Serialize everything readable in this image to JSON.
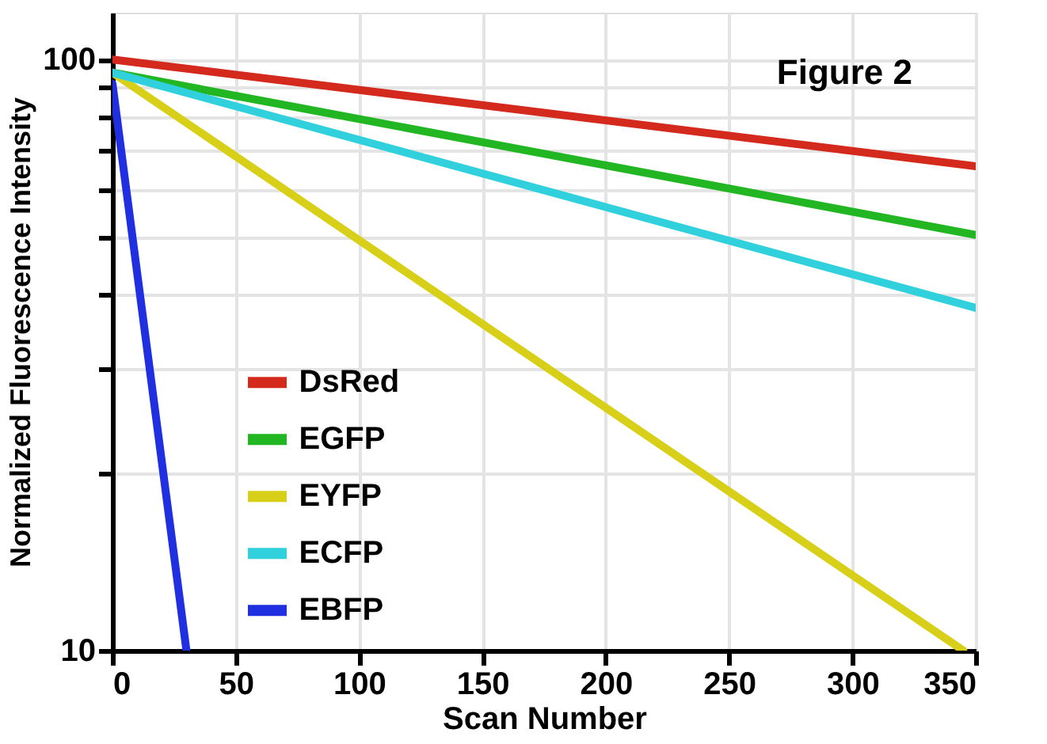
{
  "chart_data": {
    "type": "line",
    "xlabel": "Scan Number",
    "ylabel": "Normalized Fluorescence Intensity",
    "annotations": [
      "Figure 2"
    ],
    "series": [
      {
        "name": "DsRed",
        "color": "#d42a1e",
        "x": [
          0,
          350
        ],
        "values": [
          100,
          66
        ]
      },
      {
        "name": "EGFP",
        "color": "#22b622",
        "x": [
          0,
          350
        ],
        "values": [
          95,
          50.5
        ]
      },
      {
        "name": "EYFP",
        "color": "#d8d018",
        "x": [
          0,
          345
        ],
        "values": [
          95,
          10
        ]
      },
      {
        "name": "ECFP",
        "color": "#30d0dc",
        "x": [
          0,
          350
        ],
        "values": [
          95,
          38
        ]
      },
      {
        "name": "EBFP",
        "color": "#2030e0",
        "x": [
          0,
          30
        ],
        "values": [
          91,
          10
        ]
      }
    ],
    "xlim": [
      0,
      350
    ],
    "xticks": [
      0,
      50,
      100,
      150,
      200,
      250,
      300,
      350
    ],
    "ylim": [
      10,
      120
    ],
    "yticks": [
      10,
      {
        "value": 20,
        "label": null
      },
      {
        "value": 30,
        "label": null
      },
      {
        "value": 40,
        "label": null
      },
      {
        "value": 50,
        "label": null
      },
      {
        "value": 60,
        "label": null
      },
      {
        "value": 70,
        "label": null
      },
      {
        "value": 80,
        "label": null
      },
      {
        "value": 90,
        "label": null
      },
      100
    ],
    "log": true,
    "grid": true,
    "legend": "left",
    "marker": "none",
    "line_style": "solid"
  }
}
